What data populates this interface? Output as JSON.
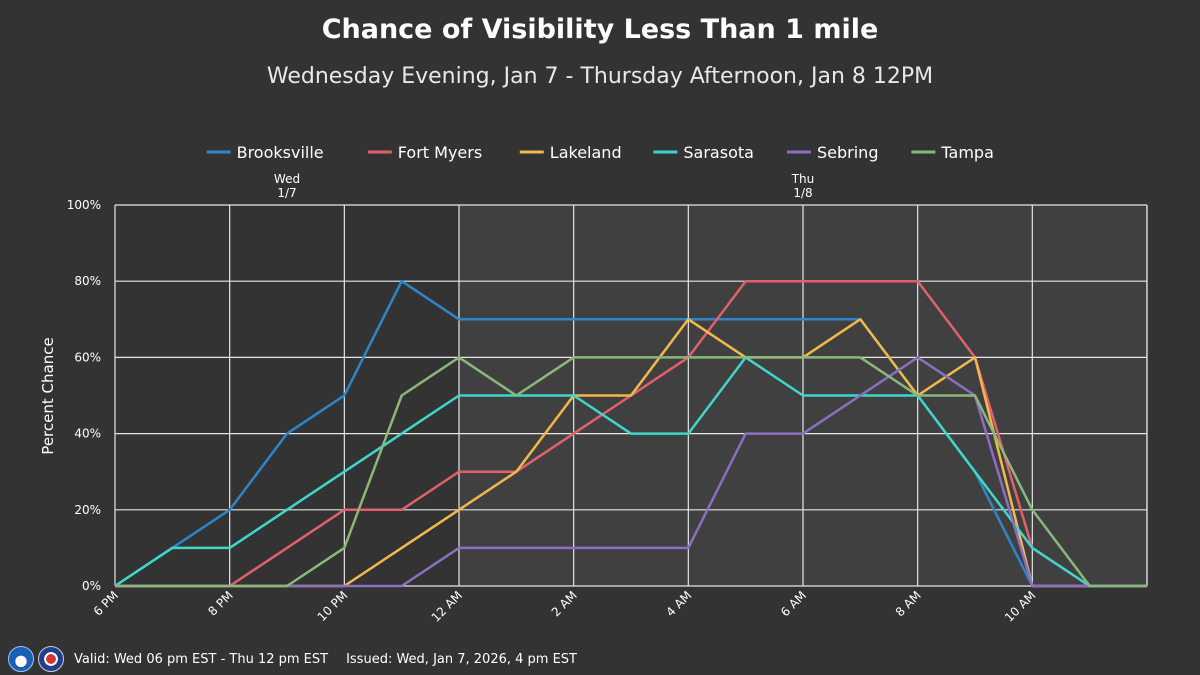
{
  "chart_data": {
    "type": "line",
    "title": "Chance of Visibility Less Than 1 mile",
    "subtitle": "Wednesday Evening, Jan 7 - Thursday Afternoon, Jan 8 12PM",
    "ylabel": "Percent Chance",
    "xlabel": "",
    "ylim": [
      0,
      100
    ],
    "y_ticks": [
      "0%",
      "20%",
      "40%",
      "60%",
      "80%",
      "100%"
    ],
    "x_hours": [
      "6 PM",
      "7 PM",
      "8 PM",
      "9 PM",
      "10 PM",
      "11 PM",
      "12 AM",
      "1 AM",
      "2 AM",
      "3 AM",
      "4 AM",
      "5 AM",
      "6 AM",
      "7 AM",
      "8 AM",
      "9 AM",
      "10 AM",
      "11 AM",
      "12 PM"
    ],
    "x_tick_labels": [
      {
        "index": 0,
        "label": "6 PM"
      },
      {
        "index": 2,
        "label": "8 PM"
      },
      {
        "index": 4,
        "label": "10 PM"
      },
      {
        "index": 6,
        "label": "12 AM"
      },
      {
        "index": 8,
        "label": "2 AM"
      },
      {
        "index": 10,
        "label": "4 AM"
      },
      {
        "index": 12,
        "label": "6 AM"
      },
      {
        "index": 14,
        "label": "8 AM"
      },
      {
        "index": 16,
        "label": "10 AM"
      }
    ],
    "day_labels": [
      {
        "index": 3,
        "line1": "Wed",
        "line2": "1/7"
      },
      {
        "index": 12,
        "line1": "Thu",
        "line2": "1/8"
      }
    ],
    "night_shading_index_range": [
      0,
      6
    ],
    "grid": true,
    "legend_position": "top",
    "series": [
      {
        "name": "Brooksville",
        "color": "#2e86c8",
        "values": [
          0,
          10,
          20,
          40,
          50,
          80,
          70,
          70,
          70,
          70,
          70,
          70,
          70,
          70,
          null,
          30,
          0,
          0,
          0
        ]
      },
      {
        "name": "Fort Myers",
        "color": "#e0606b",
        "values": [
          0,
          0,
          0,
          10,
          20,
          20,
          30,
          30,
          40,
          50,
          60,
          80,
          80,
          80,
          80,
          60,
          10,
          0,
          0
        ]
      },
      {
        "name": "Lakeland",
        "color": "#f2b84b",
        "values": [
          0,
          0,
          0,
          0,
          0,
          10,
          20,
          30,
          50,
          50,
          70,
          60,
          60,
          70,
          50,
          60,
          0,
          0,
          0
        ]
      },
      {
        "name": "Sarasota",
        "color": "#3fd6cc",
        "values": [
          0,
          10,
          10,
          20,
          30,
          40,
          50,
          50,
          50,
          40,
          40,
          60,
          50,
          50,
          50,
          30,
          10,
          0,
          0
        ]
      },
      {
        "name": "Sebring",
        "color": "#8b6fc2",
        "values": [
          0,
          0,
          0,
          0,
          0,
          0,
          10,
          10,
          10,
          10,
          10,
          40,
          40,
          50,
          60,
          50,
          0,
          0,
          0
        ]
      },
      {
        "name": "Tampa",
        "color": "#8ab87a",
        "values": [
          0,
          0,
          0,
          0,
          10,
          50,
          60,
          50,
          60,
          60,
          60,
          60,
          60,
          60,
          50,
          50,
          20,
          0,
          0
        ]
      }
    ]
  },
  "footer": {
    "valid_text": "Valid: Wed 06 pm EST - Thu 12 pm EST",
    "issued_text": "Issued: Wed, Jan 7, 2026, 4 pm EST"
  },
  "colors": {
    "background": "#333333",
    "plot_day_bg": "#404040",
    "plot_night_bg": "#333333",
    "grid": "#e6e6e6"
  }
}
